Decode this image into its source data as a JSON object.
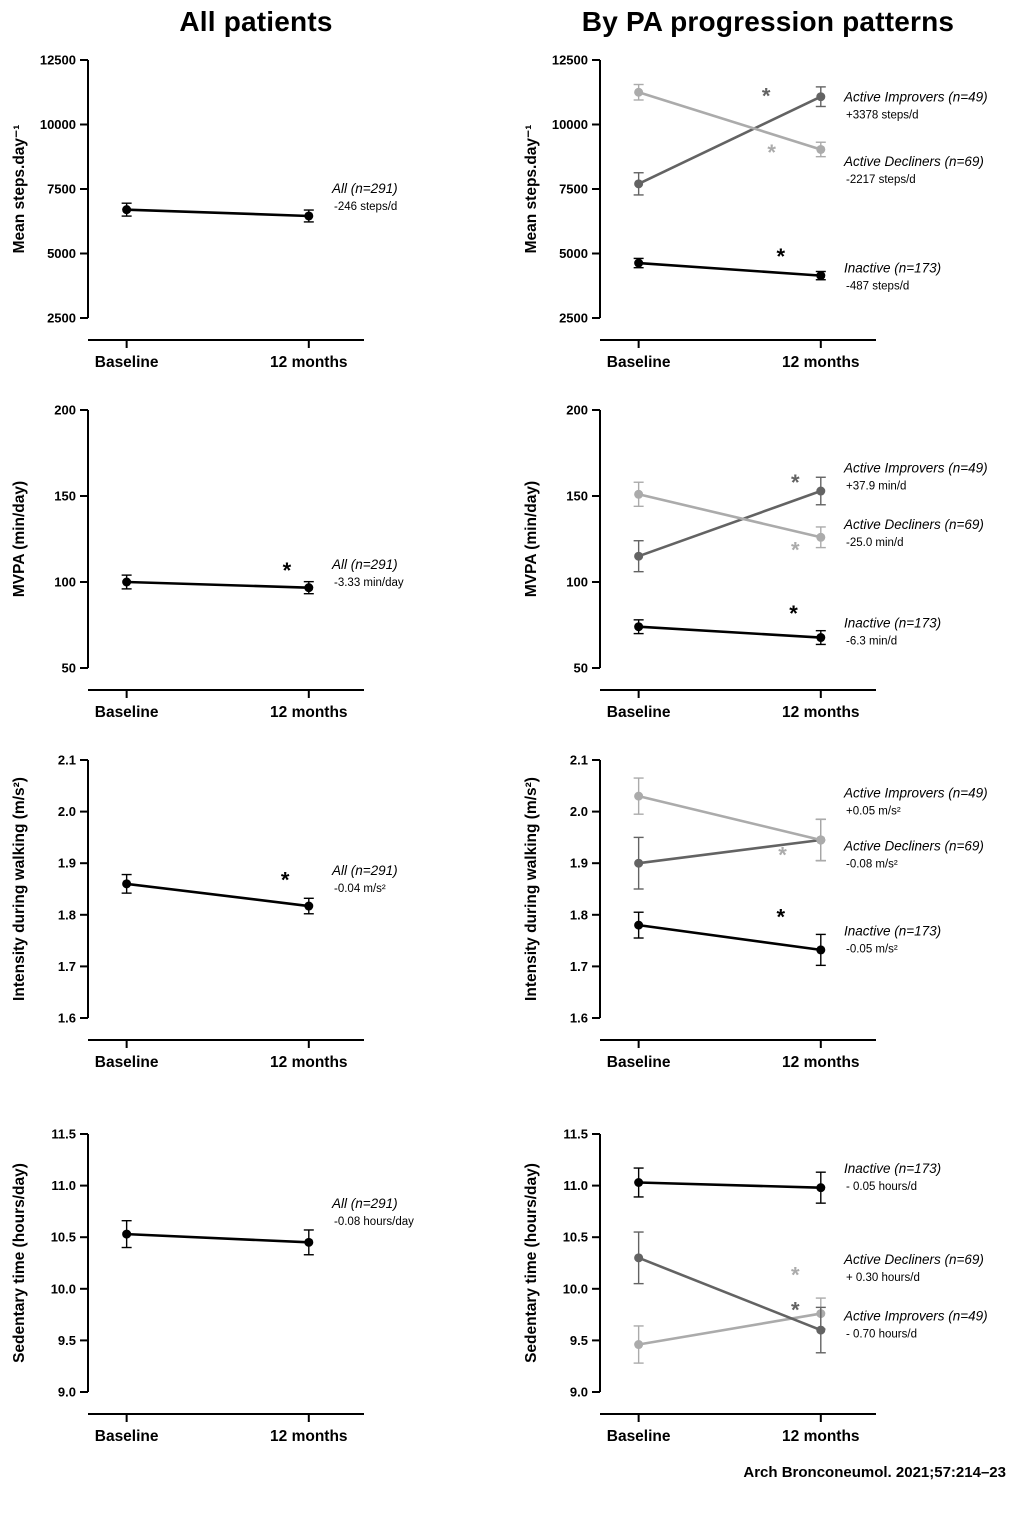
{
  "header": {
    "left_title": "All patients",
    "right_title": "By PA progression patterns"
  },
  "footer": {
    "citation": "Arch Bronconeumol. 2021;57:214–23"
  },
  "colors": {
    "black": "#000000",
    "dark": "#636363",
    "light": "#ababab"
  },
  "chart_data": [
    {
      "id": "steps-all",
      "type": "line",
      "ylabel": "Mean steps.day⁻¹",
      "ylim": [
        2500,
        12500
      ],
      "yticks": [
        2500,
        5000,
        7500,
        10000,
        12500
      ],
      "ytick_labels": [
        "2500",
        "5000",
        "7500",
        "10000",
        "12500"
      ],
      "categories": [
        "Baseline",
        "12 months"
      ],
      "series": [
        {
          "name": "All (n=291)",
          "change": "-246 steps/d",
          "color": "black",
          "values": [
            6700,
            6454
          ],
          "errors": [
            250,
            230
          ],
          "label_at": 7500,
          "asterisk": null
        }
      ]
    },
    {
      "id": "steps-patterns",
      "type": "line",
      "ylabel": "Mean steps.day⁻¹",
      "ylim": [
        2500,
        12500
      ],
      "yticks": [
        2500,
        5000,
        7500,
        10000,
        12500
      ],
      "ytick_labels": [
        "2500",
        "5000",
        "7500",
        "10000",
        "12500"
      ],
      "categories": [
        "Baseline",
        "12 months"
      ],
      "series": [
        {
          "name": "Active Improvers (n=49)",
          "change": "+3378 steps/d",
          "color": "dark",
          "values": [
            7700,
            11078
          ],
          "errors": [
            430,
            380
          ],
          "label_at": 11050,
          "asterisk": {
            "frac": 0.7,
            "at": 11120,
            "color": "dark"
          }
        },
        {
          "name": "Active Decliners (n=69)",
          "change": "-2217 steps/d",
          "color": "light",
          "values": [
            11250,
            9033
          ],
          "errors": [
            300,
            280
          ],
          "label_at": 8550,
          "asterisk": {
            "frac": 0.73,
            "at": 8930,
            "color": "light"
          }
        },
        {
          "name": "Inactive (n=173)",
          "change": "-487 steps/d",
          "color": "black",
          "values": [
            4630,
            4143
          ],
          "errors": [
            180,
            160
          ],
          "label_at": 4420,
          "asterisk": {
            "frac": 0.78,
            "at": 4900,
            "color": "black"
          }
        }
      ]
    },
    {
      "id": "mvpa-all",
      "type": "line",
      "ylabel": "MVPA (min/day)",
      "ylim": [
        50,
        200
      ],
      "yticks": [
        50,
        100,
        150,
        200
      ],
      "ytick_labels": [
        "50",
        "100",
        "150",
        "200"
      ],
      "categories": [
        "Baseline",
        "12 months"
      ],
      "series": [
        {
          "name": "All (n=291)",
          "change": "-3.33 min/day",
          "color": "black",
          "values": [
            100,
            96.7
          ],
          "errors": [
            4,
            3.5
          ],
          "label_at": 110,
          "asterisk": {
            "frac": 0.88,
            "at": 107,
            "color": "black"
          }
        }
      ]
    },
    {
      "id": "mvpa-patterns",
      "type": "line",
      "ylabel": "MVPA (min/day)",
      "ylim": [
        50,
        200
      ],
      "yticks": [
        50,
        100,
        150,
        200
      ],
      "ytick_labels": [
        "50",
        "100",
        "150",
        "200"
      ],
      "categories": [
        "Baseline",
        "12 months"
      ],
      "series": [
        {
          "name": "Active Improvers (n=49)",
          "change": "+37.9 min/d",
          "color": "dark",
          "values": [
            115,
            152.9
          ],
          "errors": [
            9,
            8
          ],
          "label_at": 166,
          "asterisk": {
            "frac": 0.86,
            "at": 158,
            "color": "dark"
          }
        },
        {
          "name": "Active Decliners (n=69)",
          "change": "-25.0 min/d",
          "color": "light",
          "values": [
            151,
            126
          ],
          "errors": [
            7,
            6
          ],
          "label_at": 133,
          "asterisk": {
            "frac": 0.86,
            "at": 119,
            "color": "light"
          }
        },
        {
          "name": "Inactive (n=173)",
          "change": "-6.3 min/d",
          "color": "black",
          "values": [
            74,
            67.7
          ],
          "errors": [
            4,
            4
          ],
          "label_at": 76,
          "asterisk": {
            "frac": 0.85,
            "at": 82,
            "color": "black"
          }
        }
      ]
    },
    {
      "id": "intensity-all",
      "type": "line",
      "ylabel": "Intensity during walking (m/s²)",
      "ylim": [
        1.6,
        2.1
      ],
      "yticks": [
        1.6,
        1.7,
        1.8,
        1.9,
        2.0,
        2.1
      ],
      "ytick_labels": [
        "1.6",
        "1.7",
        "1.8",
        "1.9",
        "2.0",
        "2.1"
      ],
      "categories": [
        "Baseline",
        "12 months"
      ],
      "series": [
        {
          "name": "All (n=291)",
          "change": "-0.04 m/s²",
          "color": "black",
          "values": [
            1.86,
            1.817
          ],
          "errors": [
            0.018,
            0.015
          ],
          "label_at": 1.885,
          "asterisk": {
            "frac": 0.87,
            "at": 1.868,
            "color": "black"
          }
        }
      ]
    },
    {
      "id": "intensity-patterns",
      "type": "line",
      "ylabel": "Intensity during walking (m/s²)",
      "ylim": [
        1.6,
        2.1
      ],
      "yticks": [
        1.6,
        1.7,
        1.8,
        1.9,
        2.0,
        2.1
      ],
      "ytick_labels": [
        "1.6",
        "1.7",
        "1.8",
        "1.9",
        "2.0",
        "2.1"
      ],
      "categories": [
        "Baseline",
        "12 months"
      ],
      "series": [
        {
          "name": "Active Improvers (n=49)",
          "change": "+0.05 m/s²",
          "color": "dark",
          "values": [
            1.9,
            1.945
          ],
          "errors": [
            0.05,
            0.04
          ],
          "label_at": 2.035,
          "asterisk": null
        },
        {
          "name": "Active Decliners (n=69)",
          "change": "-0.08 m/s²",
          "color": "light",
          "values": [
            2.03,
            1.945
          ],
          "errors": [
            0.035,
            0.04
          ],
          "label_at": 1.932,
          "asterisk": {
            "frac": 0.79,
            "at": 1.917,
            "color": "light"
          }
        },
        {
          "name": "Inactive (n=173)",
          "change": "-0.05 m/s²",
          "color": "black",
          "values": [
            1.78,
            1.732
          ],
          "errors": [
            0.025,
            0.03
          ],
          "label_at": 1.768,
          "asterisk": {
            "frac": 0.78,
            "at": 1.797,
            "color": "black"
          }
        }
      ]
    },
    {
      "id": "sedentary-all",
      "type": "line",
      "ylabel": "Sedentary time (hours/day)",
      "ylim": [
        9.0,
        11.5
      ],
      "yticks": [
        9.0,
        9.5,
        10.0,
        10.5,
        11.0,
        11.5
      ],
      "ytick_labels": [
        "9.0",
        "9.5",
        "10.0",
        "10.5",
        "11.0",
        "11.5"
      ],
      "categories": [
        "Baseline",
        "12 months"
      ],
      "series": [
        {
          "name": "All (n=291)",
          "change": "-0.08 hours/day",
          "color": "black",
          "values": [
            10.53,
            10.45
          ],
          "errors": [
            0.13,
            0.12
          ],
          "label_at": 10.82,
          "asterisk": null
        }
      ]
    },
    {
      "id": "sedentary-patterns",
      "type": "line",
      "ylabel": "Sedentary time (hours/day)",
      "ylim": [
        9.0,
        11.5
      ],
      "yticks": [
        9.0,
        9.5,
        10.0,
        10.5,
        11.0,
        11.5
      ],
      "ytick_labels": [
        "9.0",
        "9.5",
        "10.0",
        "10.5",
        "11.0",
        "11.5"
      ],
      "categories": [
        "Baseline",
        "12 months"
      ],
      "series": [
        {
          "name": "Inactive (n=173)",
          "change": "- 0.05 hours/d",
          "color": "black",
          "values": [
            11.03,
            10.98
          ],
          "errors": [
            0.14,
            0.15
          ],
          "label_at": 11.16,
          "asterisk": null
        },
        {
          "name": "Active Decliners (n=69)",
          "change": "+ 0.30 hours/d",
          "color": "light",
          "values": [
            9.46,
            9.76
          ],
          "errors": [
            0.18,
            0.15
          ],
          "label_at": 10.28,
          "asterisk": {
            "frac": 0.86,
            "at": 10.14,
            "color": "light"
          }
        },
        {
          "name": "Active Improvers (n=49)",
          "change": "- 0.70 hours/d",
          "color": "dark",
          "values": [
            10.3,
            9.6
          ],
          "errors": [
            0.25,
            0.22
          ],
          "label_at": 9.73,
          "asterisk": {
            "frac": 0.86,
            "at": 9.8,
            "color": "dark"
          }
        }
      ]
    }
  ]
}
